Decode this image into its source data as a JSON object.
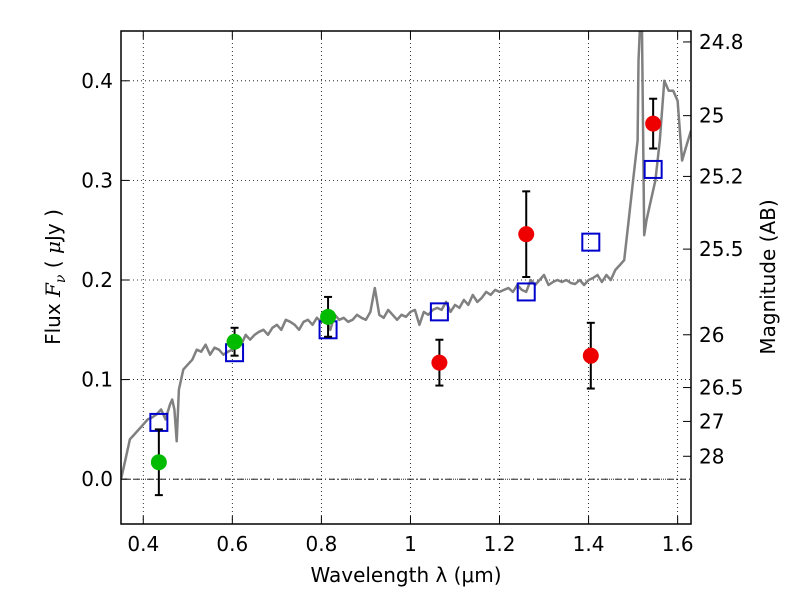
{
  "chart_data": {
    "type": "scatter",
    "xlabel": "Wavelength  λ (μm)",
    "ylabel": "Flux  F_ν  ( μJy )",
    "ylabel_parts": {
      "a": "Flux  ",
      "b": "F",
      "c": "ν",
      "d": "  ( ",
      "e": "μ",
      "f": "Jy )"
    },
    "y2label": "Magnitude (AB)",
    "xlim": [
      0.35,
      1.63
    ],
    "ylim": [
      -0.045,
      0.45
    ],
    "grid": true,
    "x_ticks": [
      0.4,
      0.6,
      0.8,
      1.0,
      1.2,
      1.4,
      1.6
    ],
    "x_tick_labels": [
      "0.4",
      "0.6",
      "0.8",
      "1",
      "1.2",
      "1.4",
      "1.6"
    ],
    "y_ticks": [
      0.0,
      0.1,
      0.2,
      0.3,
      0.4
    ],
    "y_tick_labels": [
      "0.0",
      "0.1",
      "0.2",
      "0.3",
      "0.4"
    ],
    "y2_ticks": [
      {
        "label": "24.8",
        "flux": 0.439
      },
      {
        "label": "25",
        "flux": 0.365
      },
      {
        "label": "25.2",
        "flux": 0.304
      },
      {
        "label": "25.5",
        "flux": 0.231
      },
      {
        "label": "26",
        "flux": 0.145
      },
      {
        "label": "26.5",
        "flux": 0.092
      },
      {
        "label": "27",
        "flux": 0.058
      },
      {
        "label": "28",
        "flux": 0.023
      }
    ],
    "zero_line": 0.0,
    "series": [
      {
        "kind": "line",
        "color": "#808080",
        "x": [
          0.35,
          0.36,
          0.37,
          0.38,
          0.39,
          0.4,
          0.41,
          0.42,
          0.43,
          0.44,
          0.45,
          0.46,
          0.465,
          0.47,
          0.475,
          0.48,
          0.49,
          0.5,
          0.51,
          0.52,
          0.53,
          0.54,
          0.55,
          0.56,
          0.57,
          0.58,
          0.59,
          0.6,
          0.61,
          0.62,
          0.63,
          0.64,
          0.65,
          0.66,
          0.67,
          0.68,
          0.69,
          0.7,
          0.71,
          0.72,
          0.73,
          0.74,
          0.75,
          0.76,
          0.77,
          0.78,
          0.79,
          0.8,
          0.81,
          0.82,
          0.83,
          0.84,
          0.85,
          0.86,
          0.87,
          0.88,
          0.89,
          0.9,
          0.91,
          0.92,
          0.93,
          0.94,
          0.95,
          0.96,
          0.97,
          0.98,
          0.99,
          1.0,
          1.01,
          1.02,
          1.03,
          1.04,
          1.05,
          1.06,
          1.07,
          1.08,
          1.09,
          1.1,
          1.11,
          1.12,
          1.13,
          1.14,
          1.15,
          1.16,
          1.17,
          1.18,
          1.19,
          1.2,
          1.21,
          1.22,
          1.23,
          1.24,
          1.25,
          1.26,
          1.27,
          1.28,
          1.29,
          1.3,
          1.31,
          1.32,
          1.33,
          1.34,
          1.35,
          1.36,
          1.37,
          1.38,
          1.39,
          1.4,
          1.41,
          1.42,
          1.43,
          1.44,
          1.45,
          1.46,
          1.47,
          1.48,
          1.49,
          1.5,
          1.51,
          1.512,
          1.515,
          1.52,
          1.525,
          1.53,
          1.54,
          1.55,
          1.56,
          1.57,
          1.58,
          1.59,
          1.6,
          1.61,
          1.62,
          1.63
        ],
        "y": [
          0.0,
          0.02,
          0.04,
          0.045,
          0.05,
          0.055,
          0.06,
          0.062,
          0.065,
          0.07,
          0.06,
          0.075,
          0.08,
          0.07,
          0.038,
          0.09,
          0.11,
          0.115,
          0.12,
          0.13,
          0.128,
          0.135,
          0.125,
          0.132,
          0.13,
          0.125,
          0.128,
          0.13,
          0.14,
          0.135,
          0.145,
          0.14,
          0.145,
          0.148,
          0.15,
          0.145,
          0.152,
          0.155,
          0.15,
          0.16,
          0.158,
          0.155,
          0.15,
          0.158,
          0.16,
          0.155,
          0.162,
          0.158,
          0.16,
          0.15,
          0.165,
          0.16,
          0.162,
          0.158,
          0.16,
          0.165,
          0.162,
          0.16,
          0.168,
          0.192,
          0.165,
          0.162,
          0.17,
          0.165,
          0.16,
          0.165,
          0.163,
          0.168,
          0.17,
          0.155,
          0.168,
          0.165,
          0.17,
          0.172,
          0.17,
          0.178,
          0.168,
          0.175,
          0.172,
          0.18,
          0.175,
          0.185,
          0.178,
          0.182,
          0.188,
          0.185,
          0.19,
          0.188,
          0.19,
          0.192,
          0.188,
          0.195,
          0.19,
          0.188,
          0.2,
          0.195,
          0.2,
          0.205,
          0.195,
          0.198,
          0.2,
          0.198,
          0.2,
          0.197,
          0.196,
          0.2,
          0.195,
          0.2,
          0.202,
          0.205,
          0.198,
          0.205,
          0.2,
          0.21,
          0.215,
          0.22,
          0.26,
          0.3,
          0.34,
          0.42,
          0.45,
          0.45,
          0.245,
          0.26,
          0.28,
          0.3,
          0.34,
          0.4,
          0.39,
          0.39,
          0.38,
          0.32,
          0.335,
          0.35
        ],
        "width": 2.5
      },
      {
        "kind": "squares",
        "color": "#0000cc",
        "x": [
          0.435,
          0.605,
          0.815,
          1.065,
          1.26,
          1.405,
          1.545
        ],
        "y": [
          0.057,
          0.127,
          0.15,
          0.168,
          0.188,
          0.238,
          0.311
        ]
      },
      {
        "kind": "points",
        "color": "#00bb00",
        "x": [
          0.435,
          0.605,
          0.815
        ],
        "y": [
          0.017,
          0.138,
          0.163
        ],
        "err": [
          0.033,
          0.014,
          0.02
        ]
      },
      {
        "kind": "points",
        "color": "#ee0000",
        "x": [
          1.065,
          1.26,
          1.405,
          1.545
        ],
        "y": [
          0.117,
          0.246,
          0.124,
          0.357
        ],
        "err": [
          0.023,
          0.043,
          0.033,
          0.025
        ]
      }
    ]
  }
}
